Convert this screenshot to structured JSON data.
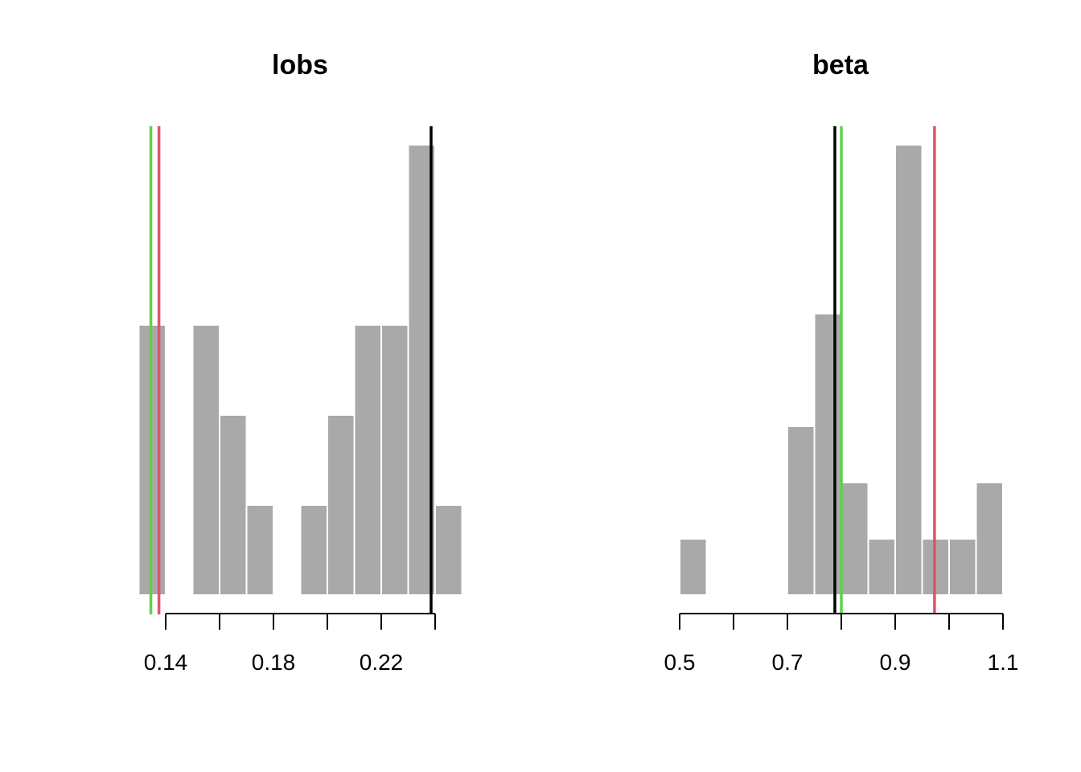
{
  "chart_data": [
    {
      "type": "bar",
      "title": "lobs",
      "xlabel": "",
      "ylabel": "",
      "bin_edges": [
        0.13,
        0.14,
        0.15,
        0.16,
        0.17,
        0.18,
        0.19,
        0.2,
        0.21,
        0.22,
        0.23,
        0.24,
        0.25
      ],
      "values": [
        3,
        0,
        3,
        2,
        1,
        0,
        1,
        2,
        3,
        3,
        5,
        1
      ],
      "ylim": [
        0,
        5
      ],
      "xticks": [
        0.14,
        0.16,
        0.18,
        0.2,
        0.22,
        0.24
      ],
      "tick_labels": [
        "0.14",
        "0.18",
        "0.22"
      ],
      "tick_label_values": [
        0.14,
        0.18,
        0.22
      ],
      "vlines": [
        {
          "x": 0.1345,
          "color": "#61D04F"
        },
        {
          "x": 0.1375,
          "color": "#DF536B"
        },
        {
          "x": 0.2385,
          "color": "#000000"
        }
      ],
      "bar_color": "#A9A9A9"
    },
    {
      "type": "bar",
      "title": "beta",
      "xlabel": "",
      "ylabel": "",
      "bin_edges": [
        0.5,
        0.55,
        0.6,
        0.65,
        0.7,
        0.75,
        0.8,
        0.85,
        0.9,
        0.95,
        1.0,
        1.05,
        1.1
      ],
      "values": [
        1,
        0,
        0,
        0,
        3,
        5,
        2,
        1,
        8,
        1,
        1,
        2
      ],
      "ylim": [
        0,
        8
      ],
      "xticks": [
        0.5,
        0.6,
        0.7,
        0.8,
        0.9,
        1.0,
        1.1
      ],
      "tick_labels": [
        "0.5",
        "0.7",
        "0.9",
        "1.1"
      ],
      "tick_label_values": [
        0.5,
        0.7,
        0.9,
        1.1
      ],
      "vlines": [
        {
          "x": 0.788,
          "color": "#000000"
        },
        {
          "x": 0.8,
          "color": "#61D04F"
        },
        {
          "x": 0.973,
          "color": "#DF536B"
        }
      ],
      "bar_color": "#A9A9A9"
    }
  ]
}
